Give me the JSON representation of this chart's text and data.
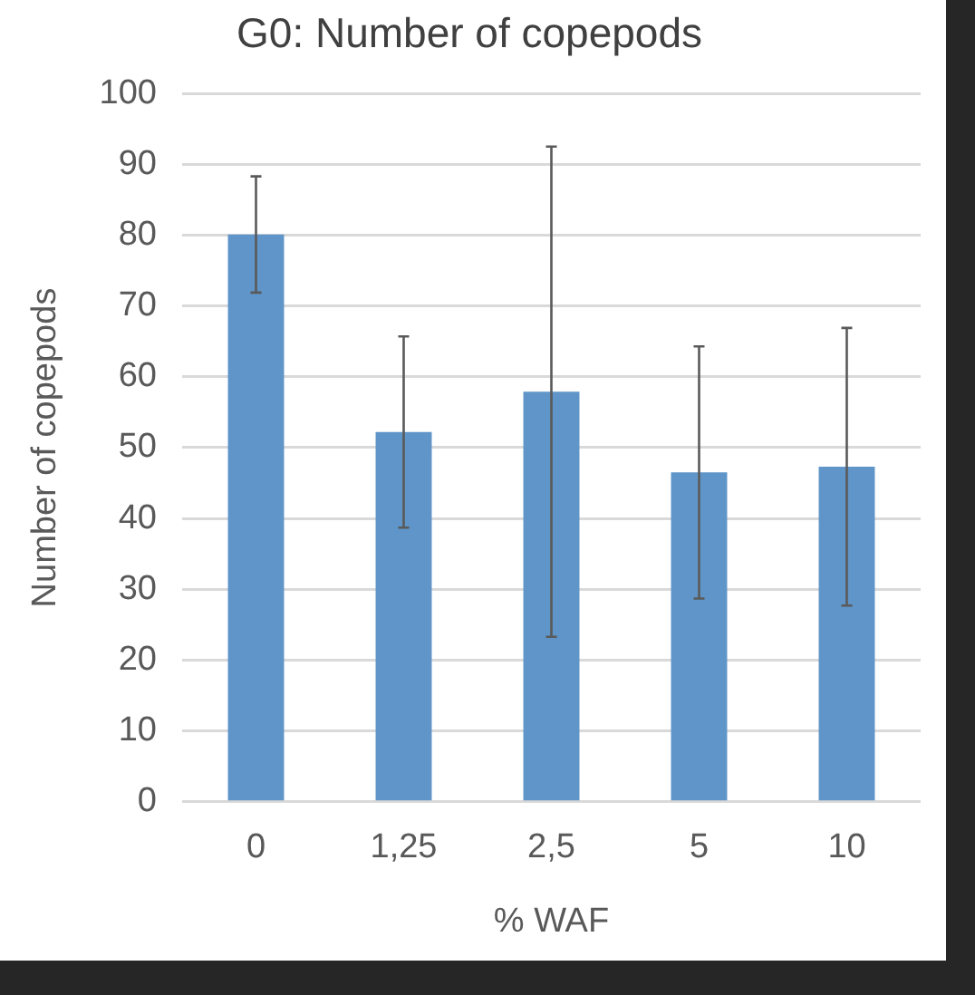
{
  "chart_data": {
    "type": "bar",
    "title": "G0: Number of copepods",
    "xlabel": "% WAF",
    "ylabel": "Number of copepods",
    "categories": [
      "0",
      "1,25",
      "2,5",
      "5",
      "10"
    ],
    "values": [
      80.1,
      52.2,
      57.9,
      46.5,
      47.3
    ],
    "errors": [
      8.2,
      13.5,
      34.6,
      17.8,
      19.6
    ],
    "color": "#5f95c8",
    "ylim": [
      0,
      100
    ],
    "yticks": [
      0,
      10,
      20,
      30,
      40,
      50,
      60,
      70,
      80,
      90,
      100
    ],
    "grid": "y",
    "legend": false
  }
}
